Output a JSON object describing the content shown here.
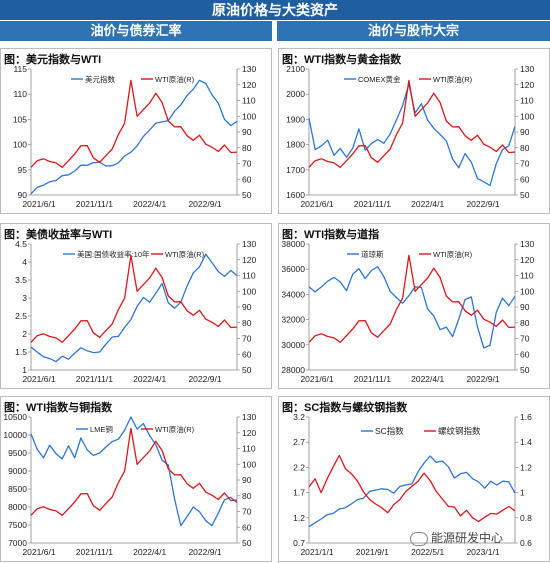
{
  "page": {
    "title": "原油价格与大类资产",
    "left_header": "油价与债券汇率",
    "right_header": "油价与股市大宗",
    "watermark": "能源研发中心"
  },
  "colors": {
    "blue": "#2e75d6",
    "red": "#d9191c",
    "header": "#1f5fa0",
    "subheader": "#2e74b5"
  },
  "chart_data": [
    {
      "type": "line",
      "title": "图：美元指数与WTI",
      "x_ticks": [
        "2021/6/1",
        "2021/11/1",
        "2022/4/1",
        "2022/9/1"
      ],
      "left_axis": {
        "min": 90,
        "max": 115,
        "ticks": [
          90,
          95,
          100,
          105,
          110,
          115
        ]
      },
      "right_axis": {
        "min": 50,
        "max": 130,
        "ticks": [
          50,
          60,
          70,
          80,
          90,
          100,
          110,
          120,
          130
        ]
      },
      "series": [
        {
          "name": "美元指数",
          "axis": "left",
          "color": "blue",
          "values": [
            90.0,
            91.5,
            92.2,
            92.5,
            93.0,
            93.6,
            94.0,
            95.0,
            95.8,
            96.0,
            96.2,
            96.5,
            96.0,
            95.7,
            96.5,
            97.5,
            98.5,
            100.0,
            101.5,
            103.0,
            104.0,
            104.5,
            105.0,
            106.5,
            108.0,
            109.5,
            111.0,
            113.0,
            112.0,
            110.0,
            108.0,
            105.0,
            104.0,
            104.5
          ]
        },
        {
          "name": "WTI原油(R)",
          "axis": "right",
          "color": "red",
          "values": [
            68,
            71,
            73,
            72,
            70,
            68,
            71,
            76,
            82,
            81,
            74,
            70,
            75,
            80,
            88,
            96,
            122,
            100,
            105,
            108,
            115,
            108,
            97,
            94,
            93,
            88,
            84,
            88,
            83,
            80,
            78,
            81,
            77,
            78
          ]
        }
      ]
    },
    {
      "type": "line",
      "title": "图：WTI指数与黄金指数",
      "x_ticks": [
        "2021/6/1",
        "2021/11/1",
        "2022/4/1",
        "2022/9/1"
      ],
      "left_axis": {
        "min": 1600,
        "max": 2100,
        "ticks": [
          1600,
          1700,
          1800,
          1900,
          2000,
          2100
        ]
      },
      "right_axis": {
        "min": 50,
        "max": 130,
        "ticks": [
          50,
          60,
          70,
          80,
          90,
          100,
          110,
          120,
          130
        ]
      },
      "series": [
        {
          "name": "COMEX黄金",
          "axis": "left",
          "color": "blue",
          "values": [
            1900,
            1780,
            1800,
            1815,
            1760,
            1780,
            1750,
            1790,
            1860,
            1780,
            1800,
            1820,
            1810,
            1840,
            1900,
            1950,
            2040,
            1930,
            1960,
            1900,
            1860,
            1840,
            1820,
            1740,
            1710,
            1760,
            1730,
            1670,
            1650,
            1640,
            1720,
            1780,
            1800,
            1870
          ]
        },
        {
          "name": "WTI原油(R)",
          "axis": "right",
          "color": "red",
          "values": [
            68,
            71,
            73,
            72,
            70,
            68,
            71,
            76,
            82,
            81,
            74,
            70,
            75,
            80,
            88,
            96,
            122,
            100,
            105,
            108,
            115,
            108,
            97,
            94,
            93,
            88,
            84,
            88,
            83,
            80,
            78,
            81,
            77,
            78
          ]
        }
      ]
    },
    {
      "type": "line",
      "title": "图：美债收益率与WTI",
      "x_ticks": [
        "2021/6/1",
        "2021/11/1",
        "2022/4/1",
        "2022/9/1"
      ],
      "left_axis": {
        "min": 1,
        "max": 4.5,
        "ticks": [
          1,
          1.5,
          2,
          2.5,
          3,
          3.5,
          4,
          4.5
        ]
      },
      "right_axis": {
        "min": 50,
        "max": 130,
        "ticks": [
          50,
          60,
          70,
          80,
          90,
          100,
          110,
          120,
          130
        ]
      },
      "series": [
        {
          "name": "美国:国债收益率:10年",
          "axis": "left",
          "color": "blue",
          "values": [
            1.6,
            1.5,
            1.4,
            1.3,
            1.25,
            1.35,
            1.3,
            1.5,
            1.6,
            1.55,
            1.45,
            1.5,
            1.75,
            1.9,
            1.95,
            2.15,
            2.4,
            2.8,
            3.0,
            2.9,
            3.1,
            3.4,
            2.9,
            2.7,
            2.9,
            3.3,
            3.7,
            3.9,
            4.2,
            4.0,
            3.7,
            3.6,
            3.8,
            3.6
          ]
        },
        {
          "name": "WTI原油(R)",
          "axis": "right",
          "color": "red",
          "values": [
            68,
            71,
            73,
            72,
            70,
            68,
            71,
            76,
            82,
            81,
            74,
            70,
            75,
            80,
            88,
            96,
            122,
            100,
            105,
            108,
            115,
            108,
            97,
            94,
            93,
            88,
            84,
            88,
            83,
            80,
            78,
            81,
            77,
            78
          ]
        }
      ]
    },
    {
      "type": "line",
      "title": "图：WTI指数与道指",
      "x_ticks": [
        "2021/6/1",
        "2021/11/1",
        "2022/4/1",
        "2022/9/1"
      ],
      "left_axis": {
        "min": 28000,
        "max": 38000,
        "ticks": [
          28000,
          30000,
          32000,
          34000,
          36000,
          38000
        ]
      },
      "right_axis": {
        "min": 50,
        "max": 130,
        "ticks": [
          50,
          60,
          70,
          80,
          90,
          100,
          110,
          120,
          130
        ]
      },
      "series": [
        {
          "name": "道琼斯",
          "axis": "left",
          "color": "blue",
          "values": [
            34500,
            34200,
            34700,
            35000,
            35400,
            34900,
            34300,
            35700,
            36000,
            35300,
            35800,
            36200,
            35500,
            34200,
            33800,
            33200,
            33900,
            34700,
            34500,
            32900,
            32200,
            31200,
            31500,
            30600,
            32100,
            33500,
            33800,
            31500,
            29700,
            30000,
            32500,
            33700,
            33200,
            33800
          ]
        },
        {
          "name": "WTI原油(R)",
          "axis": "right",
          "color": "red",
          "values": [
            68,
            71,
            73,
            72,
            70,
            68,
            71,
            76,
            82,
            81,
            74,
            70,
            75,
            80,
            88,
            96,
            122,
            100,
            105,
            108,
            115,
            108,
            97,
            94,
            93,
            88,
            84,
            88,
            83,
            80,
            78,
            81,
            77,
            78
          ]
        }
      ]
    },
    {
      "type": "line",
      "title": "图：WTI指数与铜指数",
      "x_ticks": [
        "2021/6/1",
        "2021/11/1",
        "2022/4/1",
        "2022/9/1"
      ],
      "left_axis": {
        "min": 7000,
        "max": 10500,
        "ticks": [
          7000,
          7500,
          8000,
          8500,
          9000,
          9500,
          10000,
          10500
        ]
      },
      "right_axis": {
        "min": 50,
        "max": 130,
        "ticks": [
          50,
          60,
          70,
          80,
          90,
          100,
          110,
          120,
          130
        ]
      },
      "series": [
        {
          "name": "LME铜",
          "axis": "left",
          "color": "blue",
          "values": [
            10000,
            9600,
            9400,
            9700,
            9500,
            9300,
            9700,
            9400,
            9900,
            9600,
            9400,
            9500,
            9700,
            9800,
            9900,
            10100,
            10500,
            10200,
            10300,
            10000,
            9700,
            9300,
            9200,
            8200,
            7500,
            7700,
            8000,
            7900,
            7600,
            7500,
            7800,
            8200,
            8300,
            8100
          ]
        },
        {
          "name": "WTI原油(R)",
          "axis": "right",
          "color": "red",
          "values": [
            68,
            71,
            73,
            72,
            70,
            68,
            71,
            76,
            82,
            81,
            74,
            70,
            75,
            80,
            88,
            96,
            122,
            100,
            105,
            108,
            115,
            108,
            97,
            94,
            93,
            88,
            84,
            88,
            83,
            80,
            78,
            81,
            77,
            78
          ]
        }
      ]
    },
    {
      "type": "line",
      "title": "图：SC指数与螺纹钢指数",
      "x_ticks": [
        "2021/1/1",
        "2021/9/1",
        "2022/5/1",
        "2023/1/1"
      ],
      "left_axis": {
        "min": 0.7,
        "max": 3.2,
        "ticks": [
          0.7,
          1.2,
          1.7,
          2.2,
          2.7,
          3.2
        ]
      },
      "right_axis": {
        "min": 0.6,
        "max": 1.6,
        "ticks": [
          0.6,
          0.8,
          1.0,
          1.2,
          1.4,
          1.6
        ]
      },
      "series": [
        {
          "name": "SC指数",
          "axis": "left",
          "color": "blue",
          "values": [
            1.0,
            1.1,
            1.2,
            1.25,
            1.3,
            1.35,
            1.4,
            1.5,
            1.55,
            1.6,
            1.7,
            1.75,
            1.8,
            1.75,
            1.7,
            1.8,
            1.85,
            1.9,
            2.1,
            2.3,
            2.4,
            2.3,
            2.35,
            2.2,
            2.0,
            2.05,
            2.1,
            2.0,
            1.9,
            1.8,
            1.9,
            1.85,
            1.95,
            1.9,
            1.7
          ]
        },
        {
          "name": "螺纹钢指数",
          "axis": "right",
          "color": "red",
          "values": [
            1.05,
            1.1,
            1.0,
            1.12,
            1.2,
            1.3,
            1.18,
            1.15,
            1.1,
            1.0,
            0.95,
            0.9,
            0.88,
            0.85,
            0.9,
            0.95,
            1.0,
            1.05,
            1.1,
            1.15,
            1.1,
            1.0,
            0.95,
            0.9,
            0.88,
            0.82,
            0.85,
            0.8,
            0.78,
            0.8,
            0.84,
            0.82,
            0.86,
            0.9,
            0.85
          ]
        }
      ]
    }
  ]
}
